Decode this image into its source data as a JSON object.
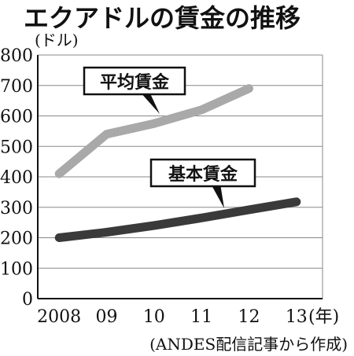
{
  "title": "エクアドルの賃金の推移",
  "unit_label": "(ドル)",
  "source": "(ANDES配信記事から作成)",
  "x_suffix": "(年)",
  "colors": {
    "average_wage": "#a9a9a9",
    "basic_wage": "#3a3a3a",
    "axis": "#111111",
    "grid": "#888888",
    "background": "#ffffff"
  },
  "chart_data": {
    "type": "line",
    "title": "エクアドルの賃金の推移",
    "ylabel": "(ドル)",
    "xlabel": "(年)",
    "ylim": [
      0,
      800
    ],
    "yticks": [
      0,
      100,
      200,
      300,
      400,
      500,
      600,
      700,
      800
    ],
    "x_tick_labels": [
      "2008",
      "09",
      "10",
      "11",
      "12",
      "13"
    ],
    "grid": true,
    "series": [
      {
        "name": "平均賃金",
        "x": [
          2008,
          2009,
          2010,
          2011,
          2012
        ],
        "values": [
          410,
          540,
          575,
          620,
          690
        ]
      },
      {
        "name": "基本賃金",
        "x": [
          2008,
          2009,
          2010,
          2011,
          2012,
          2013
        ],
        "values": [
          200,
          218,
          240,
          265,
          292,
          318
        ]
      }
    ]
  }
}
